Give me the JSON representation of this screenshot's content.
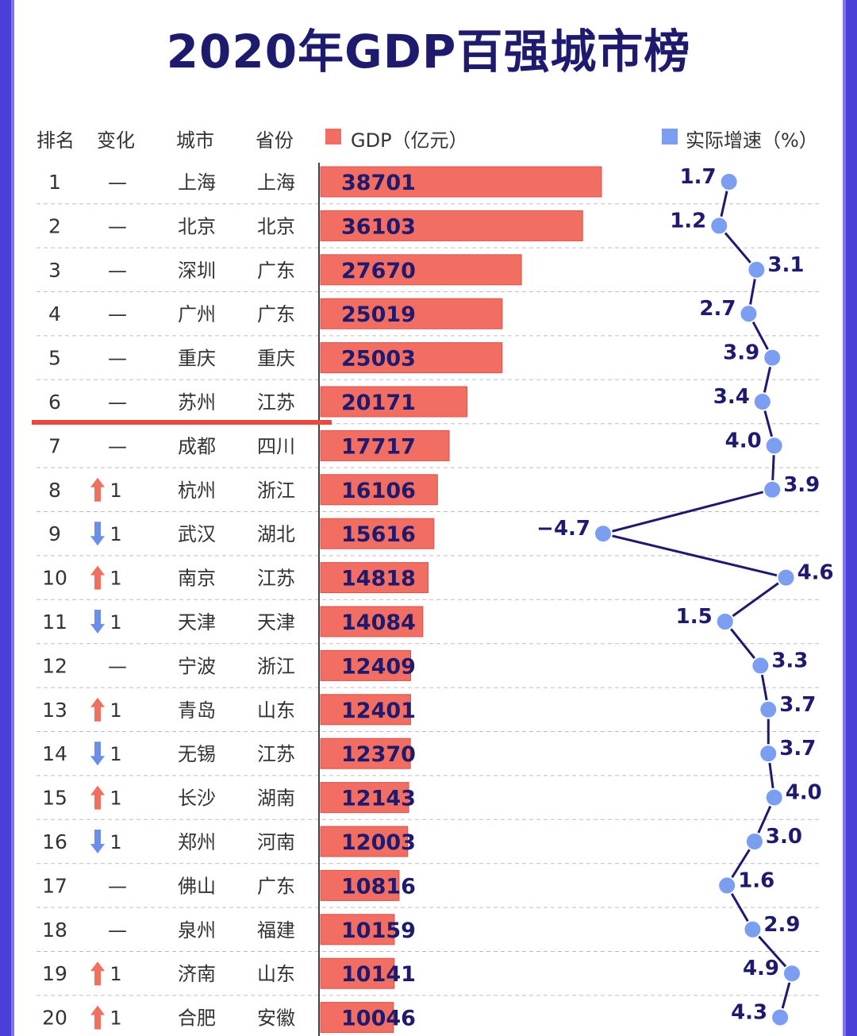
{
  "title": "2020年GDP百强城市榜",
  "headers": {
    "rank": "排名",
    "change": "变化",
    "city": "城市",
    "province": "省份",
    "gdp": "GDP（亿元）",
    "growth": "实际增速（%）"
  },
  "colors": {
    "bar": "#f26d62",
    "bar_border": "#d9534b",
    "dot": "#7b9ef0",
    "line": "#1e1a6e",
    "title": "#1e1a6e",
    "up_arrow": "#f07060",
    "down_arrow": "#6b8fe8",
    "frame": "#4a3fd9"
  },
  "chart_data": {
    "type": "bar",
    "title": "2020年GDP百强城市榜",
    "columns": [
      "排名",
      "变化",
      "城市",
      "省份",
      "GDP（亿元）",
      "实际增速（%）"
    ],
    "rows": [
      {
        "rank": "1",
        "change_dir": "none",
        "change": "—",
        "city": "上海",
        "province": "上海",
        "gdp": 38701,
        "growth": 1.7
      },
      {
        "rank": "2",
        "change_dir": "none",
        "change": "—",
        "city": "北京",
        "province": "北京",
        "gdp": 36103,
        "growth": 1.2
      },
      {
        "rank": "3",
        "change_dir": "none",
        "change": "—",
        "city": "深圳",
        "province": "广东",
        "gdp": 27670,
        "growth": 3.1
      },
      {
        "rank": "4",
        "change_dir": "none",
        "change": "—",
        "city": "广州",
        "province": "广东",
        "gdp": 25019,
        "growth": 2.7
      },
      {
        "rank": "5",
        "change_dir": "none",
        "change": "—",
        "city": "重庆",
        "province": "重庆",
        "gdp": 25003,
        "growth": 3.9
      },
      {
        "rank": "6",
        "change_dir": "none",
        "change": "—",
        "city": "苏州",
        "province": "江苏",
        "gdp": 20171,
        "growth": 3.4
      },
      {
        "rank": "7",
        "change_dir": "none",
        "change": "—",
        "city": "成都",
        "province": "四川",
        "gdp": 17717,
        "growth": 4.0
      },
      {
        "rank": "8",
        "change_dir": "up",
        "change": "1",
        "city": "杭州",
        "province": "浙江",
        "gdp": 16106,
        "growth": 3.9
      },
      {
        "rank": "9",
        "change_dir": "down",
        "change": "1",
        "city": "武汉",
        "province": "湖北",
        "gdp": 15616,
        "growth": -4.7
      },
      {
        "rank": "10",
        "change_dir": "up",
        "change": "1",
        "city": "南京",
        "province": "江苏",
        "gdp": 14818,
        "growth": 4.6
      },
      {
        "rank": "11",
        "change_dir": "down",
        "change": "1",
        "city": "天津",
        "province": "天津",
        "gdp": 14084,
        "growth": 1.5
      },
      {
        "rank": "12",
        "change_dir": "none",
        "change": "—",
        "city": "宁波",
        "province": "浙江",
        "gdp": 12409,
        "growth": 3.3
      },
      {
        "rank": "13",
        "change_dir": "up",
        "change": "1",
        "city": "青岛",
        "province": "山东",
        "gdp": 12401,
        "growth": 3.7
      },
      {
        "rank": "14",
        "change_dir": "down",
        "change": "1",
        "city": "无锡",
        "province": "江苏",
        "gdp": 12370,
        "growth": 3.7
      },
      {
        "rank": "15",
        "change_dir": "up",
        "change": "1",
        "city": "长沙",
        "province": "湖南",
        "gdp": 12143,
        "growth": 4.0
      },
      {
        "rank": "16",
        "change_dir": "down",
        "change": "1",
        "city": "郑州",
        "province": "河南",
        "gdp": 12003,
        "growth": 3.0
      },
      {
        "rank": "17",
        "change_dir": "none",
        "change": "—",
        "city": "佛山",
        "province": "广东",
        "gdp": 10816,
        "growth": 1.6
      },
      {
        "rank": "18",
        "change_dir": "none",
        "change": "—",
        "city": "泉州",
        "province": "福建",
        "gdp": 10159,
        "growth": 2.9
      },
      {
        "rank": "19",
        "change_dir": "up",
        "change": "1",
        "city": "济南",
        "province": "山东",
        "gdp": 10141,
        "growth": 4.9
      },
      {
        "rank": "20",
        "change_dir": "up",
        "change": "1",
        "city": "合肥",
        "province": "安徽",
        "gdp": 10046,
        "growth": 4.3
      }
    ],
    "gdp_range": [
      0,
      38701
    ],
    "growth_range": [
      -4.7,
      4.9
    ],
    "growth_label_side": [
      "left",
      "left",
      "right",
      "left",
      "left",
      "left",
      "left",
      "right",
      "left",
      "right",
      "left",
      "right",
      "right",
      "right",
      "right",
      "right",
      "right",
      "right",
      "left",
      "left"
    ]
  }
}
